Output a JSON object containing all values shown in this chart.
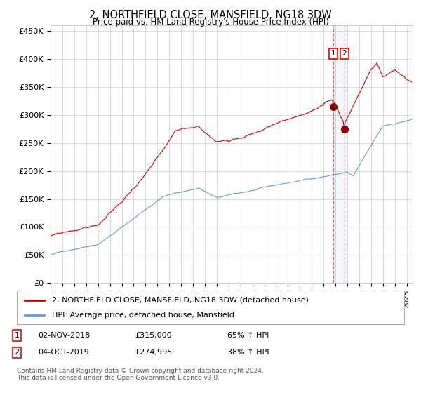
{
  "title": "2, NORTHFIELD CLOSE, MANSFIELD, NG18 3DW",
  "subtitle": "Price paid vs. HM Land Registry's House Price Index (HPI)",
  "ylabel_ticks": [
    "£0",
    "£50K",
    "£100K",
    "£150K",
    "£200K",
    "£250K",
    "£300K",
    "£350K",
    "£400K",
    "£450K"
  ],
  "ytick_values": [
    0,
    50000,
    100000,
    150000,
    200000,
    250000,
    300000,
    350000,
    400000,
    450000
  ],
  "ylim": [
    0,
    460000
  ],
  "xlim_start": 1995.0,
  "xlim_end": 2025.5,
  "line1_color": "#cc0000",
  "line2_color": "#6699cc",
  "marker1_date": 2018.84,
  "marker1_value": 315000,
  "marker2_date": 2019.75,
  "marker2_value": 274995,
  "vline1_x": 2018.84,
  "vline2_x": 2019.75,
  "legend1_label": "2, NORTHFIELD CLOSE, MANSFIELD, NG18 3DW (detached house)",
  "legend2_label": "HPI: Average price, detached house, Mansfield",
  "copyright": "Contains HM Land Registry data © Crown copyright and database right 2024.\nThis data is licensed under the Open Government Licence v3.0.",
  "background_color": "#ffffff",
  "grid_color": "#cccccc"
}
